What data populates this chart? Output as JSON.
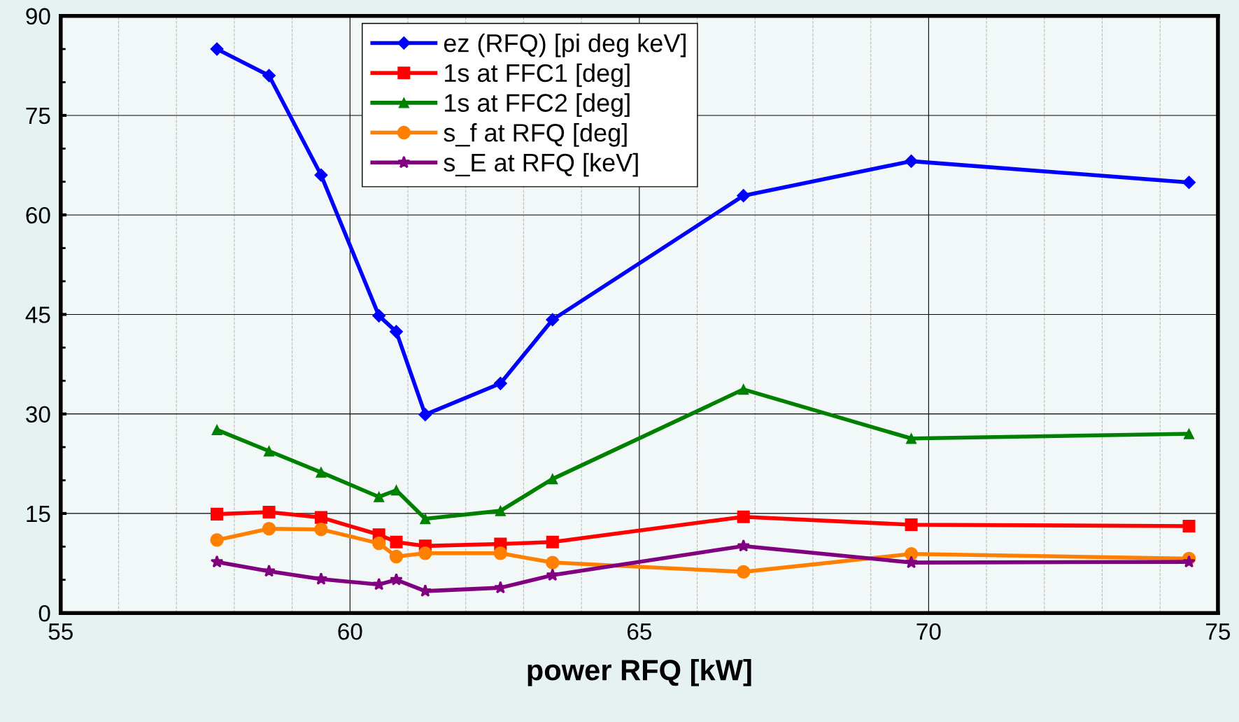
{
  "chart_data": {
    "type": "line",
    "xlabel": "power RFQ [kW]",
    "x": [
      57.7,
      58.6,
      59.5,
      60.5,
      60.8,
      61.3,
      62.6,
      63.5,
      66.8,
      69.7,
      74.5
    ],
    "xlim": [
      55,
      75
    ],
    "xticks": [
      55,
      60,
      65,
      70,
      75
    ],
    "ylim": [
      0,
      90
    ],
    "yticks": [
      0,
      15,
      30,
      45,
      60,
      75,
      90
    ],
    "grid": true,
    "legend": "top",
    "series": [
      {
        "name": "ez (RFQ) [pi deg keV]",
        "color": "#0000ff",
        "marker": "diamond",
        "values": [
          85,
          81,
          66,
          44.8,
          42.4,
          29.9,
          34.6,
          44.2,
          62.9,
          68.1,
          64.9
        ]
      },
      {
        "name": "1s at FFC1 [deg]",
        "color": "#ff0000",
        "marker": "square",
        "values": [
          14.9,
          15.2,
          14.4,
          11.8,
          10.7,
          10.1,
          10.4,
          10.7,
          14.5,
          13.3,
          13.1
        ]
      },
      {
        "name": "1s at FFC2 [deg]",
        "color": "#008000",
        "marker": "triangle",
        "values": [
          27.6,
          24.4,
          21.2,
          17.5,
          18.5,
          14.2,
          15.4,
          20.2,
          33.7,
          26.3,
          27.0
        ]
      },
      {
        "name": "s_f at RFQ [deg]",
        "color": "#ff8000",
        "marker": "circle",
        "values": [
          11.0,
          12.7,
          12.6,
          10.5,
          8.5,
          9.0,
          9.0,
          7.6,
          6.2,
          8.9,
          8.2
        ]
      },
      {
        "name": "s_E at RFQ [keV]",
        "color": "#800080",
        "marker": "star",
        "values": [
          7.7,
          6.3,
          5.1,
          4.3,
          5.0,
          3.3,
          3.8,
          5.7,
          10.1,
          7.6,
          7.7
        ]
      }
    ]
  }
}
